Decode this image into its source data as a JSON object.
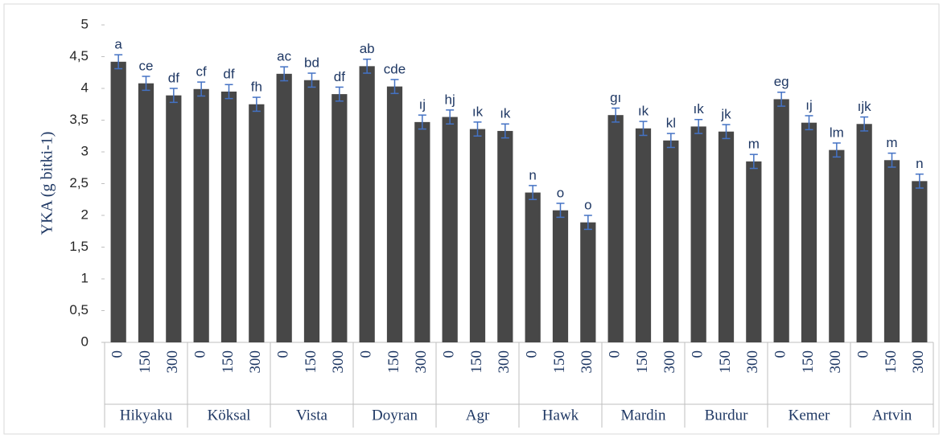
{
  "chart_data": {
    "type": "bar",
    "y_label": "YKA (g bitki-1)",
    "groups": [
      "Hikyaku",
      "Köksal",
      "Vista",
      "Doyran",
      "Agr",
      "Hawk",
      "Mardin",
      "Burdur",
      "Kemer",
      "Artvin"
    ],
    "categories": [
      "0",
      "150",
      "300",
      "0",
      "150",
      "300",
      "0",
      "150",
      "300",
      "0",
      "150",
      "300",
      "0",
      "150",
      "300",
      "0",
      "150",
      "300",
      "0",
      "150",
      "300",
      "0",
      "150",
      "300",
      "0",
      "150",
      "300",
      "0",
      "150",
      "300"
    ],
    "values": [
      4.42,
      4.08,
      3.89,
      3.99,
      3.95,
      3.75,
      4.23,
      4.13,
      3.91,
      4.35,
      4.03,
      3.47,
      3.55,
      3.36,
      3.33,
      2.36,
      2.08,
      1.89,
      3.58,
      3.37,
      3.18,
      3.4,
      3.32,
      2.85,
      3.83,
      3.46,
      3.03,
      3.44,
      2.87,
      2.54
    ],
    "errors": [
      0.11,
      0.11,
      0.11,
      0.11,
      0.11,
      0.11,
      0.11,
      0.11,
      0.11,
      0.11,
      0.11,
      0.11,
      0.11,
      0.11,
      0.11,
      0.11,
      0.11,
      0.11,
      0.11,
      0.11,
      0.11,
      0.11,
      0.11,
      0.11,
      0.11,
      0.11,
      0.11,
      0.11,
      0.11,
      0.11
    ],
    "letters": [
      "a",
      "ce",
      "df",
      "cf",
      "df",
      "fh",
      "ac",
      "bd",
      "df",
      "ab",
      "cde",
      "ıj",
      "hj",
      "ık",
      "ık",
      "n",
      "o",
      "o",
      "gı",
      "ık",
      "kl",
      "ık",
      "jk",
      "m",
      "eg",
      "ıj",
      "lm",
      "ıjk",
      "m",
      "n"
    ],
    "color": "#474747",
    "error_color": "#4472c4",
    "letter_color": "#1f3864",
    "ylim": [
      0,
      5
    ],
    "yticks": [
      0,
      {
        "value": 0.5,
        "label": "0,5"
      },
      1,
      {
        "value": 1.5,
        "label": "1,5"
      },
      2,
      {
        "value": 2.5,
        "label": "2,5"
      },
      3,
      {
        "value": 3.5,
        "label": "3,5"
      },
      4,
      {
        "value": 4.5,
        "label": "4,5"
      },
      5
    ]
  }
}
